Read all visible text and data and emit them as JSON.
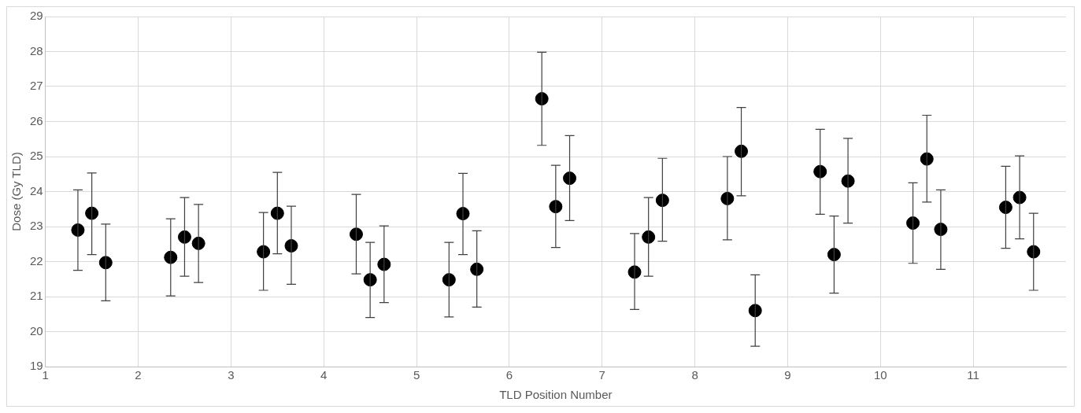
{
  "chart_data": {
    "type": "scatter",
    "xlabel": "TLD Position Number",
    "ylabel": "Dose (Gy TLD)",
    "xlim": [
      1,
      12
    ],
    "xticks": [
      1,
      2,
      3,
      4,
      5,
      6,
      7,
      8,
      9,
      10,
      11
    ],
    "ylim": [
      19,
      29
    ],
    "yticks": [
      19,
      20,
      21,
      22,
      23,
      24,
      25,
      26,
      27,
      28,
      29
    ],
    "grid": true,
    "marker": "circle",
    "legend": false,
    "series": [
      {
        "color": "#000000",
        "x": [
          1.35,
          1.5,
          1.65,
          2.35,
          2.5,
          2.65,
          3.35,
          3.5,
          3.65,
          4.35,
          4.5,
          4.65,
          5.35,
          5.5,
          5.65,
          6.35,
          6.5,
          6.65,
          7.35,
          7.5,
          7.65,
          8.35,
          8.5,
          8.65,
          9.35,
          9.5,
          9.65,
          10.35,
          10.5,
          10.65,
          11.35,
          11.5,
          11.65
        ],
        "values": [
          22.9,
          23.38,
          21.97,
          22.12,
          22.7,
          22.52,
          22.28,
          23.38,
          22.45,
          22.78,
          21.48,
          21.92,
          21.48,
          23.37,
          21.78,
          26.65,
          23.57,
          24.38,
          21.7,
          22.7,
          23.75,
          23.8,
          25.15,
          20.6,
          24.57,
          22.2,
          24.3,
          23.1,
          24.93,
          22.92,
          23.55,
          23.83,
          22.28
        ],
        "errors": [
          [
            21.75,
            24.05
          ],
          [
            22.2,
            24.53
          ],
          [
            20.88,
            23.07
          ],
          [
            21.02,
            23.22
          ],
          [
            21.58,
            23.83
          ],
          [
            21.4,
            23.63
          ],
          [
            21.18,
            23.4
          ],
          [
            22.22,
            24.55
          ],
          [
            21.35,
            23.58
          ],
          [
            21.65,
            23.92
          ],
          [
            20.4,
            22.55
          ],
          [
            20.83,
            23.02
          ],
          [
            20.42,
            22.55
          ],
          [
            22.2,
            24.52
          ],
          [
            20.7,
            22.88
          ],
          [
            25.32,
            27.98
          ],
          [
            22.4,
            24.75
          ],
          [
            23.17,
            25.6
          ],
          [
            20.63,
            22.8
          ],
          [
            21.58,
            23.83
          ],
          [
            22.58,
            24.95
          ],
          [
            22.62,
            25.0
          ],
          [
            23.88,
            26.4
          ],
          [
            19.58,
            21.62
          ],
          [
            23.35,
            25.78
          ],
          [
            21.1,
            23.3
          ],
          [
            23.1,
            25.52
          ],
          [
            21.95,
            24.25
          ],
          [
            23.7,
            26.18
          ],
          [
            21.78,
            24.05
          ],
          [
            22.38,
            24.72
          ],
          [
            22.65,
            25.02
          ],
          [
            21.18,
            23.38
          ]
        ]
      }
    ]
  }
}
